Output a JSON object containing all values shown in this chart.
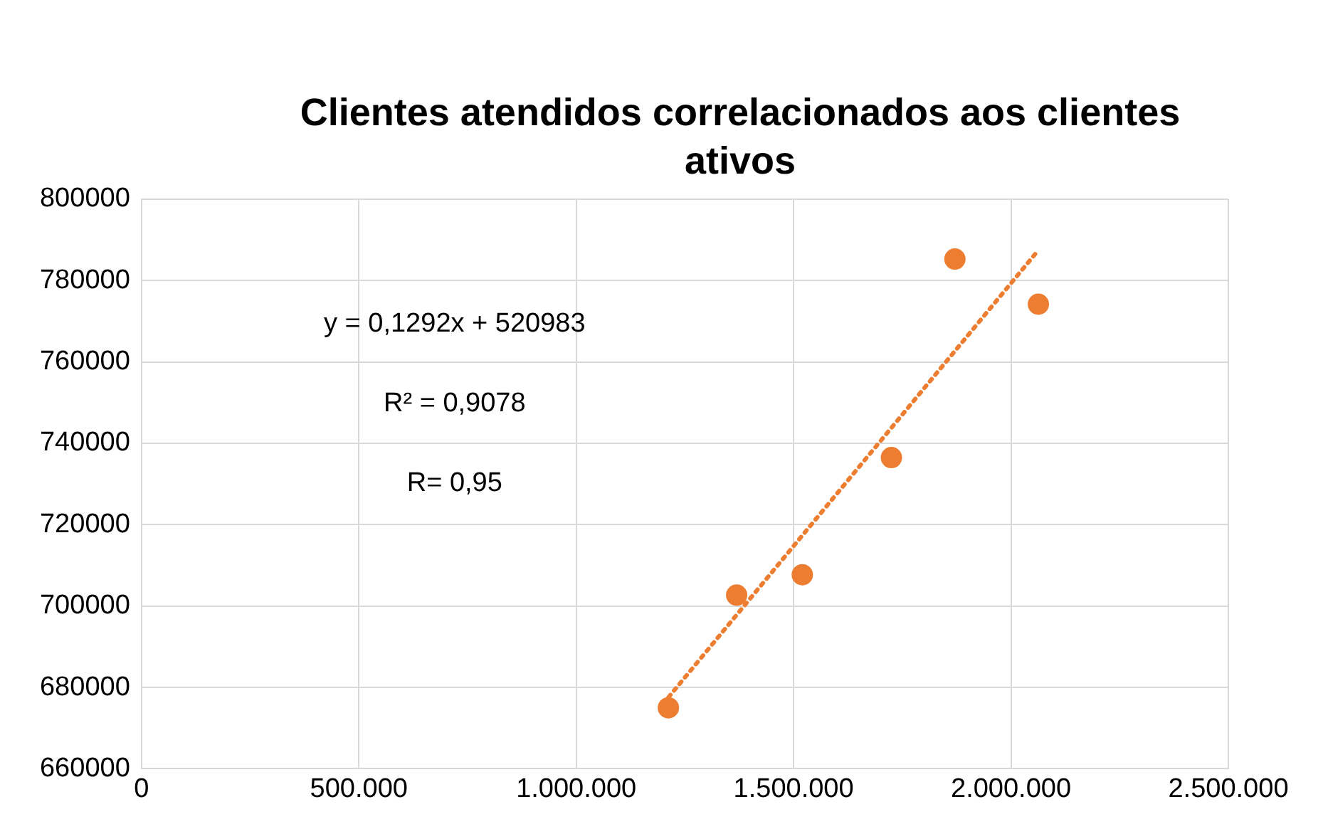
{
  "chart_data": {
    "type": "scatter",
    "title": "Clientes atendidos correlacionados aos clientes ativos",
    "series": [
      {
        "color": "#ed7d31",
        "x": [
          1212000,
          1369000,
          1520000,
          1725000,
          1871000,
          2063000
        ],
        "values": [
          675000,
          702700,
          707700,
          736500,
          785300,
          774200
        ]
      },
      {
        "type": "line",
        "color": "#ed7d31",
        "line_style": "dotted",
        "marker": "none",
        "x": [
          1200000,
          2060000
        ],
        "values": [
          676000,
          787100
        ]
      }
    ],
    "xlim": [
      0,
      2500000
    ],
    "xticks": [
      {
        "value": 0,
        "label": "0"
      },
      {
        "value": 500000,
        "label": "500.000"
      },
      {
        "value": 1000000,
        "label": "1.000.000"
      },
      {
        "value": 1500000,
        "label": "1.500.000"
      },
      {
        "value": 2000000,
        "label": "2.000.000"
      },
      {
        "value": 2500000,
        "label": "2.500.000"
      }
    ],
    "ylim": [
      660000,
      800000
    ],
    "yticks": [
      660000,
      680000,
      700000,
      720000,
      740000,
      760000,
      780000,
      800000
    ],
    "grid": true,
    "legend": false,
    "marker": "circle",
    "annotations": [
      "y = 0,1292x + 520983",
      "R² = 0,9078",
      "R= 0,95"
    ]
  }
}
